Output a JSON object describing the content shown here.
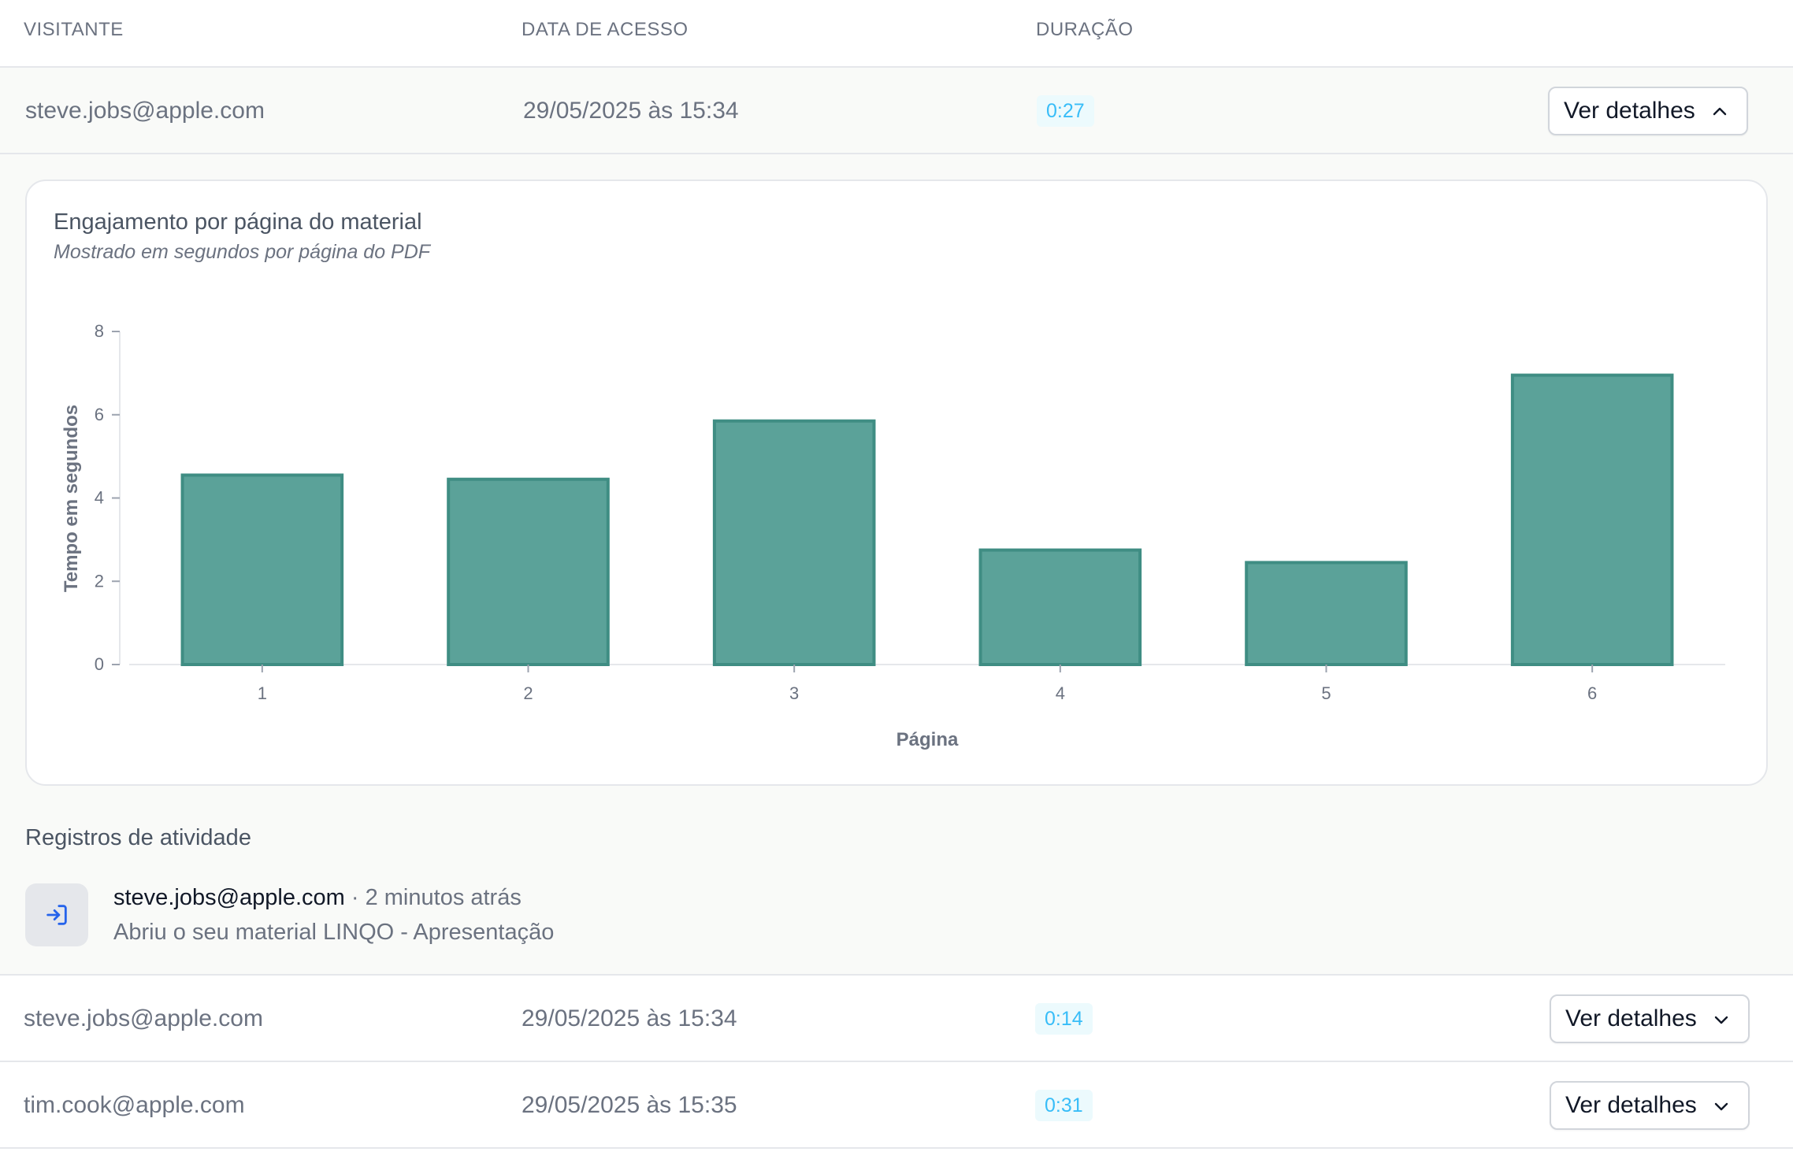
{
  "table": {
    "headers": {
      "visitor": "VISITANTE",
      "date": "DATA DE ACESSO",
      "duration": "DURAÇÃO"
    },
    "rows": [
      {
        "email": "steve.jobs@apple.com",
        "date": "29/05/2025 às 15:34",
        "duration": "0:27",
        "button": "Ver detalhes",
        "expanded": true
      },
      {
        "email": "steve.jobs@apple.com",
        "date": "29/05/2025 às 15:34",
        "duration": "0:14",
        "button": "Ver detalhes",
        "expanded": false
      },
      {
        "email": "tim.cook@apple.com",
        "date": "29/05/2025 às 15:35",
        "duration": "0:31",
        "button": "Ver detalhes",
        "expanded": false
      }
    ]
  },
  "details": {
    "card_title": "Engajamento por página do material",
    "card_subtitle": "Mostrado em segundos por página do PDF",
    "activity_title": "Registros de atividade",
    "activity": [
      {
        "user": "steve.jobs@apple.com",
        "time": "· 2 minutos atrás",
        "text": "Abriu o seu material LINQO - Apresentação",
        "icon": "login-icon"
      }
    ]
  },
  "colors": {
    "bar_fill": "#5ba299",
    "bar_stroke": "#3f8d83",
    "badge_text": "#38bdf8",
    "accent_icon": "#2563eb"
  },
  "chart_data": {
    "type": "bar",
    "categories": [
      "1",
      "2",
      "3",
      "4",
      "5",
      "6"
    ],
    "values": [
      4.55,
      4.45,
      5.85,
      2.75,
      2.45,
      6.95
    ],
    "title": "",
    "xlabel": "Página",
    "ylabel": "Tempo em segundos",
    "ylim": [
      0,
      8
    ],
    "yticks": [
      0,
      2,
      4,
      6,
      8
    ],
    "grid": false
  }
}
